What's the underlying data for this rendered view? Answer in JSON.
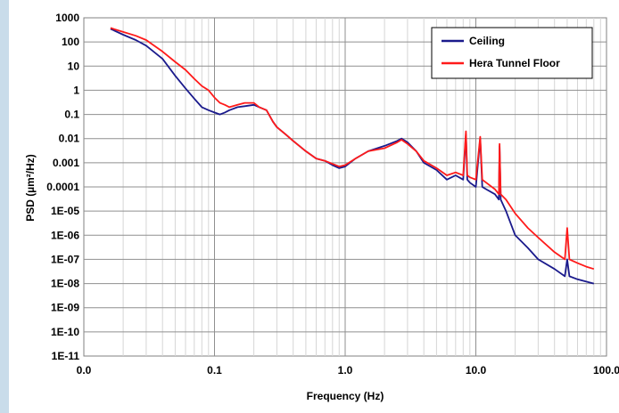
{
  "chart_data": {
    "type": "line",
    "title": "",
    "xlabel": "Frequency (Hz)",
    "ylabel": "PSD (µm²/Hz)",
    "x_scale": "log",
    "y_scale": "log",
    "xlim": [
      0.01,
      100
    ],
    "ylim": [
      1e-11,
      1000
    ],
    "x_tick_labels": [
      "0.0",
      "0.1",
      "1.0",
      "10.0",
      "100.0"
    ],
    "y_tick_labels": [
      "1E-11",
      "1E-10",
      "1E-09",
      "1E-08",
      "1E-07",
      "1E-06",
      "1E-05",
      "0.0001",
      "0.001",
      "0.01",
      "0.1",
      "1",
      "10",
      "100",
      "1000"
    ],
    "grid": true,
    "legend_position": "top-right",
    "series": [
      {
        "name": "Ceiling",
        "color": "#1a1a8c",
        "x": [
          0.016,
          0.02,
          0.025,
          0.03,
          0.04,
          0.05,
          0.06,
          0.07,
          0.08,
          0.09,
          0.1,
          0.11,
          0.12,
          0.13,
          0.15,
          0.17,
          0.2,
          0.22,
          0.25,
          0.28,
          0.3,
          0.35,
          0.4,
          0.5,
          0.6,
          0.7,
          0.8,
          0.9,
          1.0,
          1.2,
          1.5,
          2.0,
          2.5,
          2.7,
          3.0,
          3.5,
          4.0,
          5.0,
          6.0,
          7.0,
          8.0,
          8.4,
          8.6,
          9.0,
          10.0,
          10.8,
          11.2,
          12.0,
          14.0,
          15.0,
          15.2,
          15.5,
          17.0,
          20.0,
          25.0,
          30.0,
          40.0,
          48.0,
          50.0,
          52.0,
          60.0,
          70.0,
          80.0
        ],
        "y": [
          350,
          200,
          120,
          70,
          20,
          4,
          1.2,
          0.45,
          0.2,
          0.15,
          0.12,
          0.1,
          0.12,
          0.15,
          0.2,
          0.22,
          0.25,
          0.2,
          0.15,
          0.05,
          0.03,
          0.015,
          0.008,
          0.003,
          0.0015,
          0.0012,
          0.0008,
          0.0006,
          0.0007,
          0.0015,
          0.003,
          0.005,
          0.008,
          0.01,
          0.007,
          0.003,
          0.001,
          0.0005,
          0.0002,
          0.0003,
          0.0002,
          0.015,
          0.0002,
          0.00015,
          0.0001,
          0.01,
          0.0001,
          8e-05,
          5e-05,
          3e-05,
          0.005,
          3e-05,
          1e-05,
          1e-06,
          3e-07,
          1e-07,
          4e-08,
          2e-08,
          1e-07,
          2e-08,
          1.5e-08,
          1.2e-08,
          1e-08
        ]
      },
      {
        "name": "Hera Tunnel Floor",
        "color": "#ff1a1a",
        "x": [
          0.016,
          0.02,
          0.025,
          0.03,
          0.04,
          0.05,
          0.06,
          0.07,
          0.08,
          0.09,
          0.1,
          0.11,
          0.12,
          0.13,
          0.15,
          0.17,
          0.2,
          0.22,
          0.25,
          0.28,
          0.3,
          0.35,
          0.4,
          0.5,
          0.6,
          0.7,
          0.8,
          0.9,
          1.0,
          1.2,
          1.5,
          2.0,
          2.5,
          2.7,
          3.0,
          3.5,
          4.0,
          5.0,
          6.0,
          7.0,
          8.0,
          8.4,
          8.6,
          9.0,
          10.0,
          10.8,
          11.2,
          12.0,
          14.0,
          15.0,
          15.2,
          15.5,
          17.0,
          20.0,
          25.0,
          30.0,
          40.0,
          48.0,
          50.0,
          52.0,
          60.0,
          70.0,
          80.0
        ],
        "y": [
          380,
          260,
          180,
          120,
          40,
          15,
          7,
          3,
          1.5,
          1,
          0.5,
          0.3,
          0.25,
          0.2,
          0.25,
          0.3,
          0.3,
          0.2,
          0.15,
          0.05,
          0.03,
          0.015,
          0.008,
          0.003,
          0.0015,
          0.0012,
          0.0009,
          0.0007,
          0.0008,
          0.0015,
          0.003,
          0.004,
          0.007,
          0.009,
          0.006,
          0.003,
          0.0012,
          0.0006,
          0.0003,
          0.0004,
          0.0003,
          0.02,
          0.0003,
          0.00025,
          0.0002,
          0.012,
          0.0002,
          0.00015,
          8e-05,
          5e-05,
          0.006,
          5e-05,
          3e-05,
          8e-06,
          2e-06,
          8e-07,
          2e-07,
          1e-07,
          2e-06,
          1e-07,
          7e-08,
          5e-08,
          4e-08
        ]
      }
    ]
  }
}
